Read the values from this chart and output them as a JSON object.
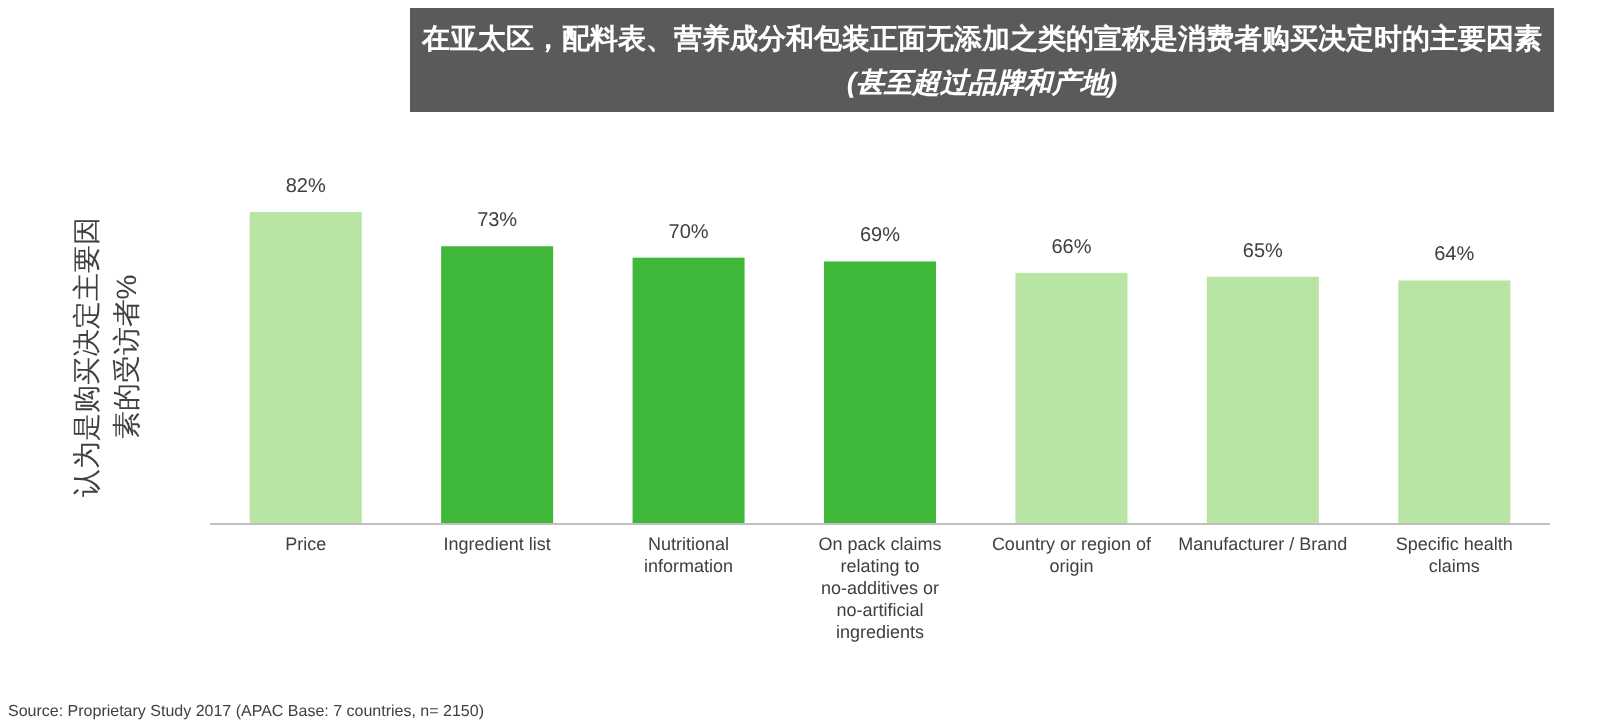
{
  "chart_data": {
    "type": "bar",
    "title": "在亚太区，配料表、营养成分和包装正面无添加之类的宣称是消费者购买决定时的主要因素",
    "subtitle": "(甚至超过品牌和产地)",
    "ylabel": "认为是购买决定主要因素的受访者%",
    "categories": [
      "Price",
      "Ingredient list",
      "Nutritional information",
      "On pack claims relating to no-additives or no-artificial ingredients",
      "Country or region of origin",
      "Manufacturer / Brand",
      "Specific health claims"
    ],
    "values": [
      82,
      73,
      70,
      69,
      66,
      65,
      64
    ],
    "value_labels": [
      "82%",
      "73%",
      "70%",
      "69%",
      "66%",
      "65%",
      "64%"
    ],
    "colors": [
      "#b8e4a4",
      "#3fb83a",
      "#3fb83a",
      "#3fb83a",
      "#b8e4a4",
      "#b8e4a4",
      "#b8e4a4"
    ],
    "annotations": [
      "Source: Proprietary Study 2017 (APAC Base: 7 countries, n= 2150)"
    ]
  }
}
